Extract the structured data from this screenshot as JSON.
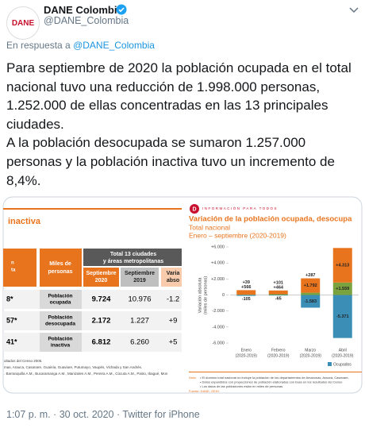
{
  "tweet": {
    "avatar_text": "DANE",
    "author_name": "DANE Colombia",
    "handle": "@DANE_Colombia",
    "reply_prefix": "En respuesta a",
    "reply_to": "@DANE_Colombia",
    "paragraphs": [
      "Para septiembre de 2020 la población ocupada en el total nacional tuvo una reducción de 1.998.000 personas,  1.252.000 de ellas concentradas en las 13 principales ciudades.",
      "A la población desocupada se sumaron 1.257.000 personas y la población inactiva tuvo un incremento de 8,4%."
    ],
    "timestamp": "1:07 p. m. · 30 oct. 2020 · Twitter for iPhone"
  },
  "table_image": {
    "title": "inactiva",
    "left_cut_header": [
      "n",
      "ta"
    ],
    "unit_header": [
      "Miles de",
      "personas"
    ],
    "group_header": [
      "Total 13 ciudades",
      "y áreas metropolitanas"
    ],
    "columns": [
      [
        "Septiembre",
        "2020"
      ],
      [
        "Septiembre",
        "2019"
      ],
      [
        "Varia",
        "abso"
      ]
    ],
    "rows": [
      {
        "cut": "8*",
        "label": [
          "Población",
          "ocupada"
        ],
        "values": [
          "9.724",
          "10.976",
          "-1.2"
        ]
      },
      {
        "cut": "57*",
        "label": [
          "Población",
          "desocupada"
        ],
        "values": [
          "2.172",
          "1.227",
          "+9"
        ]
      },
      {
        "cut": "41*",
        "label": [
          "Población",
          "inactiva"
        ],
        "values": [
          "6.812",
          "6.260",
          "+5"
        ]
      }
    ],
    "footnotes": [
      "ultados del Censo 2005.",
      "mas, Arauca, Casanare, Guainía, Guaviare, Putumayo, Vaupés, Vichada y San Andrés.",
      ". Barranquilla A.M., Bucaramanga A.M., Manizales A.M., Pereira A.M., Cúcuta A.M., Pasto, Ibagué, Mon"
    ]
  },
  "chart_data": {
    "type": "bar",
    "stacked": true,
    "logo": "D",
    "banner": "INFORMACIÓN PARA TODOS",
    "title": "Variación de la población ocupada, desocupa",
    "subtitle": [
      "Total nacional",
      "Enero – septiembre (2020-2019)"
    ],
    "y_label": [
      "Variación absoluta",
      "(miles de personas)"
    ],
    "categories": [
      "Enero",
      "Febrero",
      "Marzo",
      "Abril"
    ],
    "category_sublabels": [
      "(2020-2019)",
      "(2020-2019)",
      "(2020-2019)",
      "(2020-2019)"
    ],
    "series": [
      {
        "color": "#7aa23f",
        "values": [
          39,
          101,
          287,
          1559
        ],
        "value_labels": [
          "+39",
          "+101",
          "+287",
          "+1.559"
        ]
      },
      {
        "color": "#e8741e",
        "values": [
          566,
          464,
          1792,
          4313
        ],
        "value_labels": [
          "+566",
          "+464",
          "+1.792",
          "+4.313"
        ]
      },
      {
        "name": "Ocupados",
        "color": "#3b8fb6",
        "values": [
          -105,
          -65,
          -1583,
          -5371
        ],
        "value_labels": [
          "-105",
          "-65",
          "-1.583",
          "-5.371"
        ]
      }
    ],
    "ylim": [
      -6000,
      6000
    ],
    "yticks": [
      {
        "value": 6000,
        "label": "+6.000"
      },
      {
        "value": 4000,
        "label": "+4.000"
      },
      {
        "value": 2000,
        "label": "+2.000"
      },
      0,
      {
        "value": -2000,
        "label": "-2.000"
      },
      {
        "value": -4000,
        "label": "-4.000"
      },
      {
        "value": -6000,
        "label": "-6.000"
      }
    ],
    "notes": [
      "Nota:",
      "• El dominio total nacional no incluye la población de los departamentos de Amazonas, Arauca, Casanare,",
      "• Datos expandidos con proyecciones de población elaboradas con base en los resultados del Censo",
      "• Los datos de las poblaciones están en miles de personas."
    ],
    "source": "Fuente: DANE, GEIH."
  }
}
